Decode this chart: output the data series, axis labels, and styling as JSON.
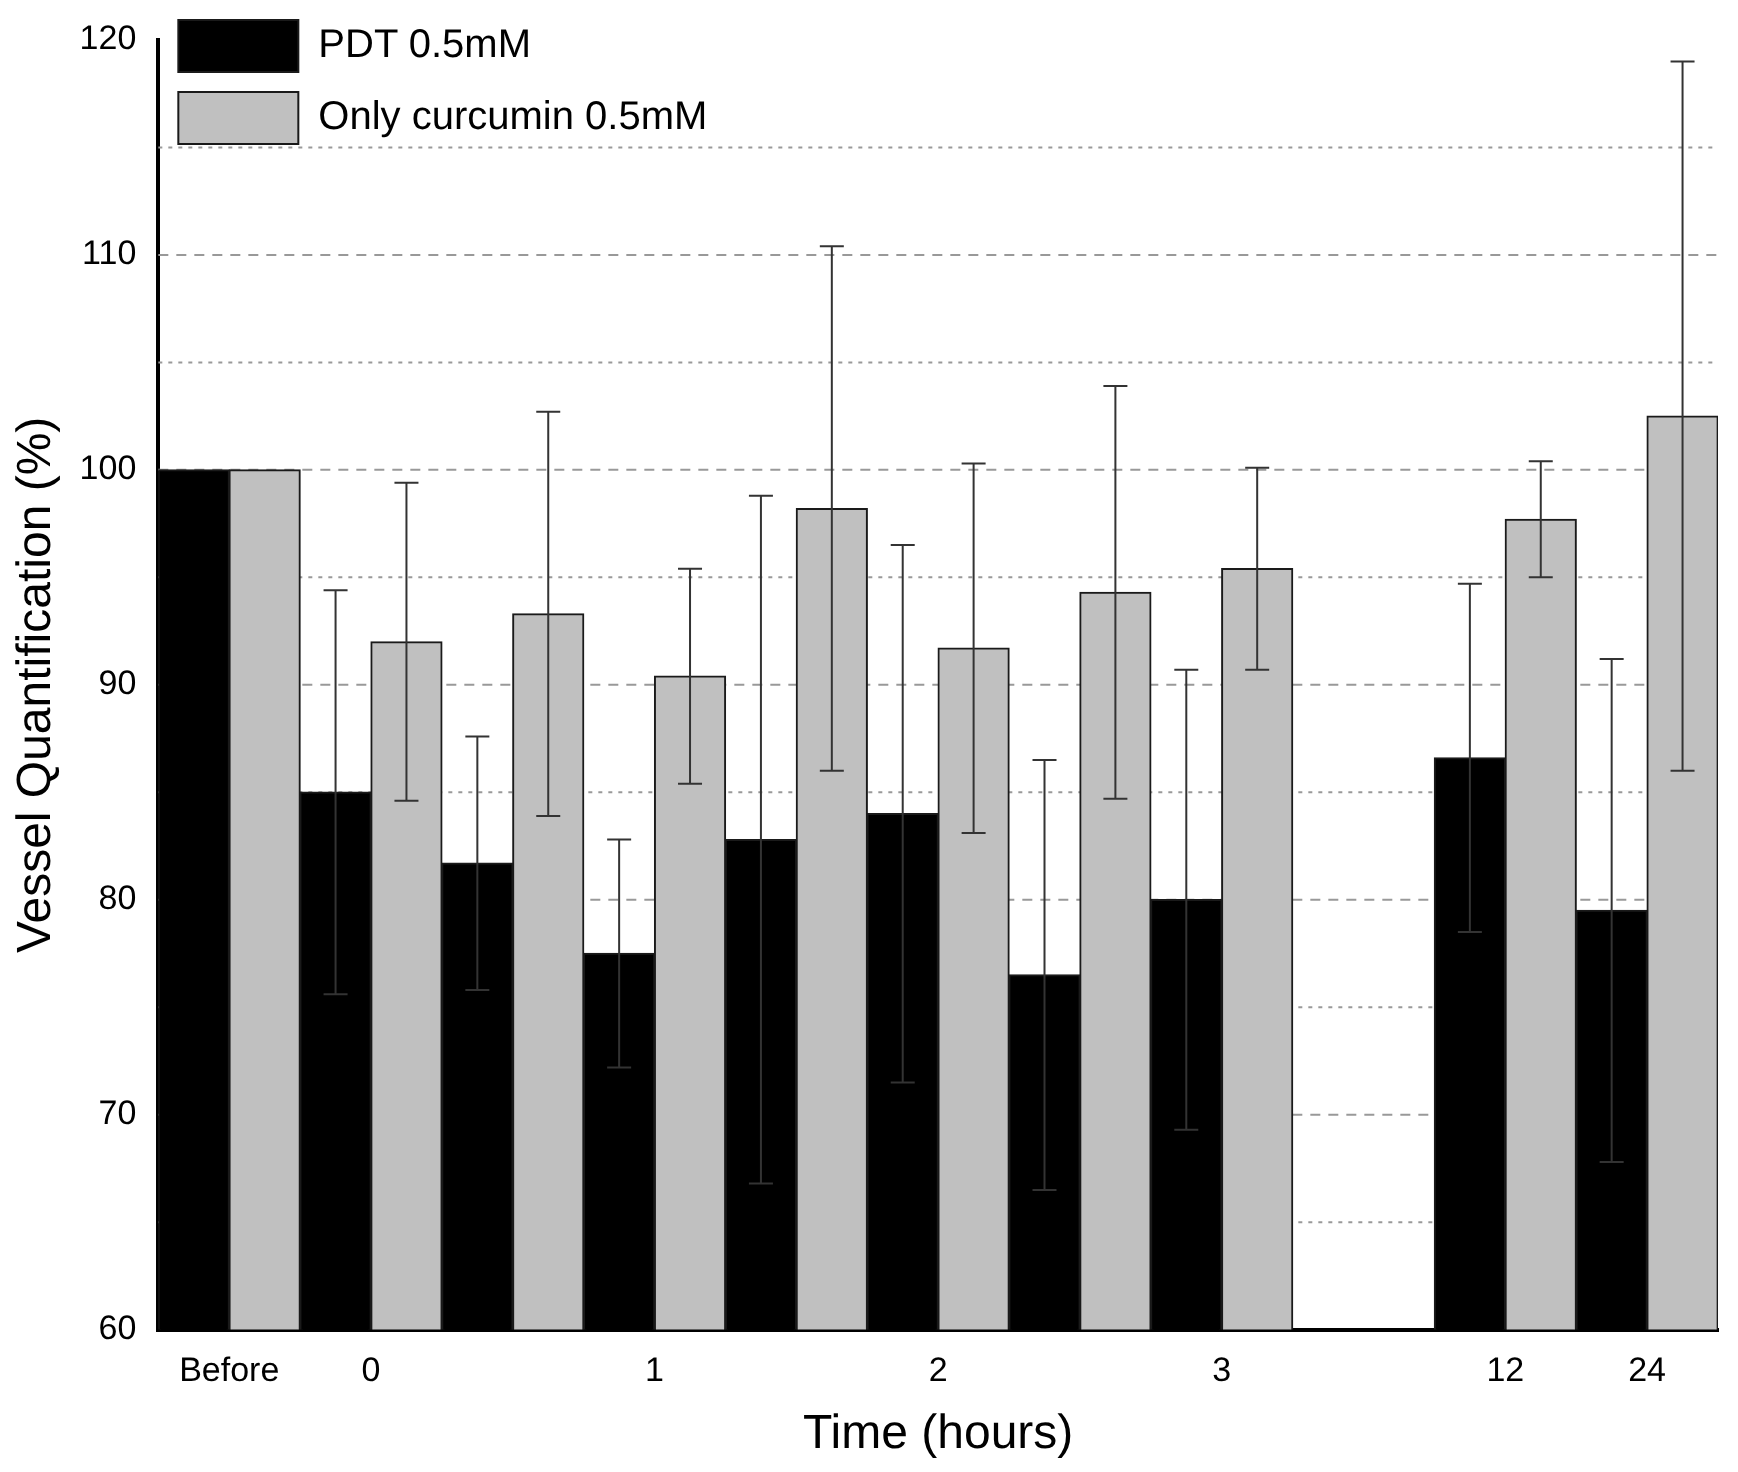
{
  "chart_data": {
    "type": "bar",
    "xlabel": "Time (hours)",
    "ylabel": "Vessel Quantification (%)",
    "categories": [
      "Before",
      "0",
      null,
      "1",
      null,
      "2",
      null,
      "3",
      null,
      "12",
      "24"
    ],
    "series": [
      {
        "name": "PDT 0.5mM",
        "color": "#000000",
        "values": [
          100,
          85,
          81.7,
          77.5,
          82.8,
          84,
          76.5,
          80,
          null,
          86.6,
          79.5
        ],
        "errors": [
          null,
          9.4,
          5.9,
          5.3,
          16,
          12.5,
          10,
          10.7,
          null,
          8.1,
          11.7
        ]
      },
      {
        "name": "Only curcumin 0.5mM",
        "color": "#c0c0c0",
        "values": [
          100,
          92,
          93.3,
          90.4,
          98.2,
          91.7,
          94.3,
          95.4,
          null,
          97.7,
          102.5
        ],
        "errors": [
          null,
          7.4,
          9.4,
          5,
          12.2,
          8.6,
          9.6,
          4.7,
          null,
          2.7,
          16.5
        ]
      }
    ],
    "ylim": [
      60,
      120
    ],
    "yticks": [
      60,
      {
        "value": 65,
        "label": null
      },
      70,
      {
        "value": 75,
        "label": null
      },
      80,
      {
        "value": 85,
        "label": null
      },
      90,
      {
        "value": 95,
        "label": null
      },
      100,
      {
        "value": 105,
        "label": null
      },
      110,
      {
        "value": 115,
        "label": null
      },
      120
    ],
    "grid": "y",
    "legend": "top left"
  }
}
